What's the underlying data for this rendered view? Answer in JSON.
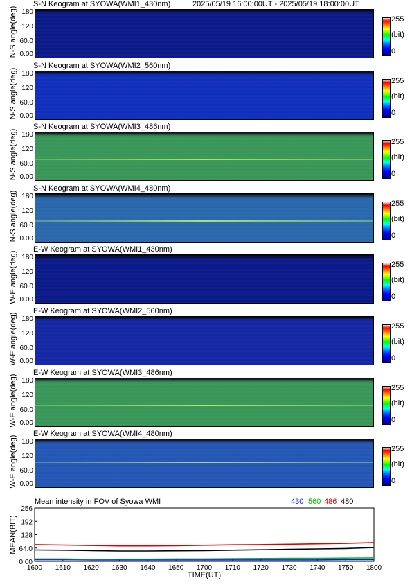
{
  "header": {
    "date_range": "2025/05/19 16:00:00UT - 2025/05/19 18:00:00UT"
  },
  "colorbar": {
    "max_label": "255",
    "unit_label": "(bit)",
    "min_label": "0"
  },
  "yticks": [
    "180",
    "120",
    "60.0",
    "0.00"
  ],
  "panels": [
    {
      "title": "S-N Keogram at SYOWA(WMI1_430nm)",
      "ylabel": "N-S angle(deg)",
      "base": "#0a1a8c",
      "level": 0.12,
      "bands": []
    },
    {
      "title": "S-N Keogram at SYOWA(WMI2_560nm)",
      "ylabel": "N-S angle(deg)",
      "base": "#1030c0",
      "level": 0.25,
      "bands": []
    },
    {
      "title": "S-N Keogram at SYOWA(WMI3_486nm)",
      "ylabel": "N-S angle(deg)",
      "base": "#3a9a5a",
      "level": 0.55,
      "bands": []
    },
    {
      "title": "S-N Keogram at SYOWA(WMI4_480nm)",
      "ylabel": "N-S angle(deg)",
      "base": "#2a6ab0",
      "level": 0.4,
      "bands": []
    },
    {
      "title": "E-W Keogram at SYOWA(WMI1_430nm)",
      "ylabel": "W-E angle(deg)",
      "base": "#0a1a8c",
      "level": 0.12,
      "bands": []
    },
    {
      "title": "E-W Keogram at SYOWA(WMI2_560nm)",
      "ylabel": "W-E angle(deg)",
      "base": "#1428a8",
      "level": 0.2,
      "bands": []
    },
    {
      "title": "E-W Keogram at SYOWA(WMI3_486nm)",
      "ylabel": "W-E angle(deg)",
      "base": "#3a9a5a",
      "level": 0.5,
      "bands": []
    },
    {
      "title": "E-W Keogram at SYOWA(WMI4_480nm)",
      "ylabel": "W-E angle(deg)",
      "base": "#2458b8",
      "level": 0.35,
      "bands": []
    }
  ],
  "chart_data": {
    "type": "line",
    "title": "Mean intensity in FOV of Syowa WMI",
    "xlabel": "TIME(UT)",
    "ylabel": "MEAN(BIT)",
    "x_ticks": [
      "1600",
      "1610",
      "1620",
      "1630",
      "1640",
      "1650",
      "1700",
      "1710",
      "1720",
      "1730",
      "1740",
      "1750",
      "1800"
    ],
    "y_ticks": [
      "256",
      "192",
      "128",
      "64.0",
      "0.00"
    ],
    "ylim": [
      0,
      256
    ],
    "x": [
      1600,
      1610,
      1620,
      1630,
      1640,
      1650,
      1700,
      1710,
      1720,
      1730,
      1740,
      1750,
      1800
    ],
    "series": [
      {
        "name": "430",
        "color": "#1010ff",
        "values": [
          8,
          8,
          7,
          7,
          7,
          7,
          7,
          7,
          7,
          7,
          7,
          8,
          8
        ]
      },
      {
        "name": "560",
        "color": "#00c000",
        "values": [
          12,
          12,
          10,
          11,
          11,
          12,
          12,
          13,
          14,
          15,
          15,
          16,
          17
        ]
      },
      {
        "name": "486",
        "color": "#e00000",
        "values": [
          80,
          78,
          76,
          74,
          74,
          75,
          77,
          79,
          80,
          82,
          84,
          86,
          90
        ]
      },
      {
        "name": "480",
        "color": "#000000",
        "values": [
          55,
          54,
          52,
          50,
          50,
          51,
          52,
          54,
          56,
          58,
          60,
          62,
          66
        ]
      }
    ]
  }
}
